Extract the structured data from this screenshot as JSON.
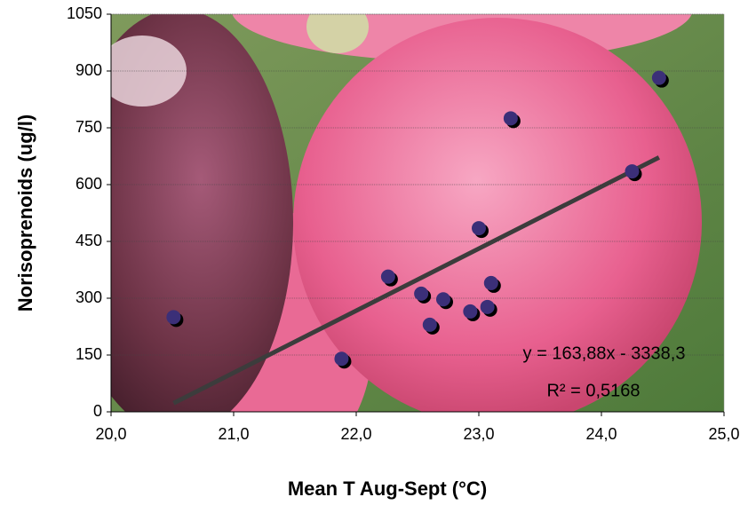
{
  "chart_data": {
    "type": "scatter",
    "x_label": "Mean T Aug-Sept (°C)",
    "y_label": "Norisoprenoids (ug/l)",
    "series": [
      {
        "color": "#3b2f78",
        "x": [
          20.51,
          21.88,
          22.26,
          22.53,
          22.6,
          22.71,
          22.93,
          23.0,
          23.07,
          23.1,
          23.26,
          24.25,
          24.47
        ],
        "values": [
          250,
          140,
          357,
          312,
          230,
          297,
          265,
          485,
          277,
          340,
          775,
          635,
          882
        ]
      }
    ],
    "trendline": {
      "slope": 163.88,
      "intercept": -3338.3,
      "color": "#3c3c3c",
      "equation": "y = 163,88x - 3338,3",
      "r_squared": "R² = 0,5168"
    },
    "xlim": [
      20,
      25
    ],
    "xticks": [
      {
        "value": 20,
        "label": "20,0"
      },
      {
        "value": 21,
        "label": "21,0"
      },
      {
        "value": 22,
        "label": "22,0"
      },
      {
        "value": 23,
        "label": "23,0"
      },
      {
        "value": 24,
        "label": "24,0"
      },
      {
        "value": 25,
        "label": "25,0"
      }
    ],
    "ylim": [
      0,
      1050
    ],
    "yticks": [
      0,
      150,
      300,
      450,
      600,
      750,
      900,
      1050
    ],
    "grid": true
  }
}
